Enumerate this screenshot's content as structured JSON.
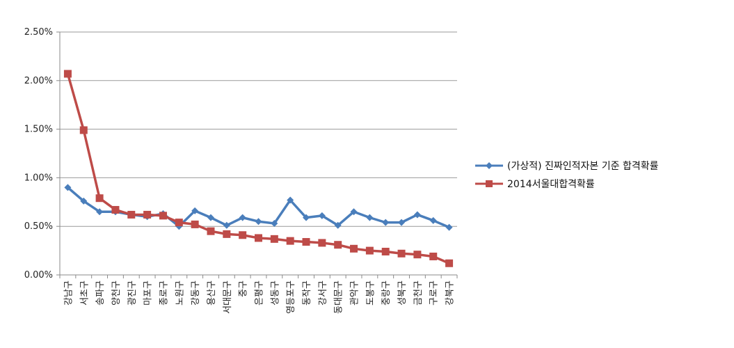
{
  "chart_data": {
    "type": "line",
    "title": "",
    "xlabel": "",
    "ylabel": "",
    "ylim": [
      0,
      0.025
    ],
    "yticks": [
      "0.00%",
      "0.50%",
      "1.00%",
      "1.50%",
      "2.00%",
      "2.50%"
    ],
    "grid": "horizontal",
    "legend_position": "right",
    "categories": [
      "강남구",
      "서초구",
      "송파구",
      "양천구",
      "광진구",
      "마포구",
      "종로구",
      "노원구",
      "강동구",
      "용산구",
      "서대문구",
      "중구",
      "은평구",
      "성동구",
      "영등포구",
      "동작구",
      "강서구",
      "동대문구",
      "관악구",
      "도봉구",
      "중랑구",
      "성북구",
      "금천구",
      "구로구",
      "강북구"
    ],
    "series": [
      {
        "name": "(가상적) 진짜인적자본 기준 합격확률",
        "color": "#4a7ebb",
        "marker": "diamond",
        "values": [
          0.009,
          0.0076,
          0.0065,
          0.0065,
          0.0062,
          0.006,
          0.0063,
          0.005,
          0.0066,
          0.0059,
          0.0051,
          0.0059,
          0.0055,
          0.0053,
          0.0077,
          0.0059,
          0.0061,
          0.0051,
          0.0065,
          0.0059,
          0.0054,
          0.0054,
          0.0062,
          0.0056,
          0.0049
        ]
      },
      {
        "name": "2014서울대합격확률",
        "color": "#be4b48",
        "marker": "square",
        "values": [
          0.0207,
          0.0149,
          0.0079,
          0.0067,
          0.0062,
          0.0062,
          0.0061,
          0.0054,
          0.0052,
          0.0045,
          0.0042,
          0.0041,
          0.0038,
          0.0037,
          0.0035,
          0.0034,
          0.0033,
          0.0031,
          0.0027,
          0.0025,
          0.0024,
          0.0022,
          0.0021,
          0.0019,
          0.0012
        ]
      }
    ]
  }
}
